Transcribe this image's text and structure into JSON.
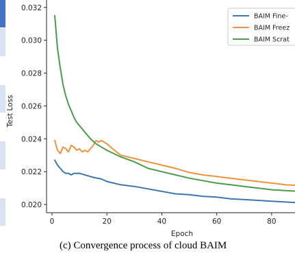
{
  "chart_data": {
    "type": "line",
    "title": "",
    "xlabel": "Epoch",
    "ylabel": "Test Loss",
    "xlim": [
      -2,
      92
    ],
    "ylim": [
      0.0195,
      0.0322
    ],
    "xticks": [
      0,
      20,
      40,
      60,
      80
    ],
    "yticks": [
      0.02,
      0.022,
      0.024,
      0.026,
      0.028,
      0.03,
      0.032
    ],
    "ytick_labels": [
      "0.020",
      "0.022",
      "0.024",
      "0.026",
      "0.028",
      "0.030",
      "0.032"
    ],
    "grid": false,
    "legend": "top-right",
    "series": [
      {
        "name": "BAIM Fine-",
        "color": "#3d76ab",
        "x": [
          1,
          2,
          3,
          4,
          5,
          6,
          7,
          8,
          9,
          10,
          12,
          15,
          18,
          20,
          25,
          30,
          35,
          40,
          45,
          50,
          55,
          60,
          65,
          70,
          75,
          80,
          85,
          90,
          92
        ],
        "y": [
          0.0227,
          0.0224,
          0.0222,
          0.022,
          0.0219,
          0.0219,
          0.0218,
          0.0219,
          0.0219,
          0.0219,
          0.0218,
          0.02165,
          0.02155,
          0.0214,
          0.0212,
          0.0211,
          0.02095,
          0.0208,
          0.02065,
          0.0206,
          0.0205,
          0.02045,
          0.02035,
          0.0203,
          0.02025,
          0.0202,
          0.02015,
          0.0201,
          0.0201
        ]
      },
      {
        "name": "BAIM Freez",
        "color": "#f0913d",
        "x": [
          1,
          2,
          3,
          4,
          5,
          6,
          7,
          8,
          9,
          10,
          11,
          12,
          13,
          14,
          15,
          16,
          17,
          18,
          19,
          20,
          22,
          25,
          30,
          35,
          40,
          45,
          50,
          55,
          60,
          65,
          70,
          75,
          80,
          85,
          90,
          92
        ],
        "y": [
          0.0239,
          0.0233,
          0.0231,
          0.0235,
          0.0234,
          0.0232,
          0.0236,
          0.0235,
          0.0233,
          0.0234,
          0.0232,
          0.0233,
          0.0232,
          0.0234,
          0.0236,
          0.0239,
          0.0238,
          0.0239,
          0.0238,
          0.0237,
          0.0234,
          0.023,
          0.0228,
          0.0226,
          0.0224,
          0.0222,
          0.02195,
          0.0218,
          0.0217,
          0.0216,
          0.0215,
          0.0214,
          0.0213,
          0.0212,
          0.02115,
          0.0211
        ]
      },
      {
        "name": "BAIM Scrat",
        "color": "#4c9a4c",
        "x": [
          1,
          2,
          3,
          4,
          5,
          6,
          7,
          8,
          9,
          10,
          12,
          14,
          16,
          18,
          20,
          25,
          30,
          35,
          40,
          45,
          50,
          55,
          60,
          65,
          70,
          75,
          80,
          85,
          90,
          92
        ],
        "y": [
          0.0315,
          0.0295,
          0.0283,
          0.0273,
          0.0266,
          0.0261,
          0.0257,
          0.0253,
          0.025,
          0.0248,
          0.0244,
          0.024,
          0.0237,
          0.0235,
          0.0233,
          0.0229,
          0.0226,
          0.0222,
          0.022,
          0.0218,
          0.0216,
          0.02145,
          0.0213,
          0.0212,
          0.0211,
          0.021,
          0.0209,
          0.02085,
          0.0208,
          0.0208
        ]
      }
    ]
  },
  "caption": "(c) Convergence process of cloud BAIM",
  "left_strip_colors": [
    "#4472c4",
    "#d9e1f2",
    "#ffffff",
    "#d9e1f2",
    "#ffffff",
    "#d9e1f2",
    "#ffffff",
    "#d9e1f2"
  ]
}
